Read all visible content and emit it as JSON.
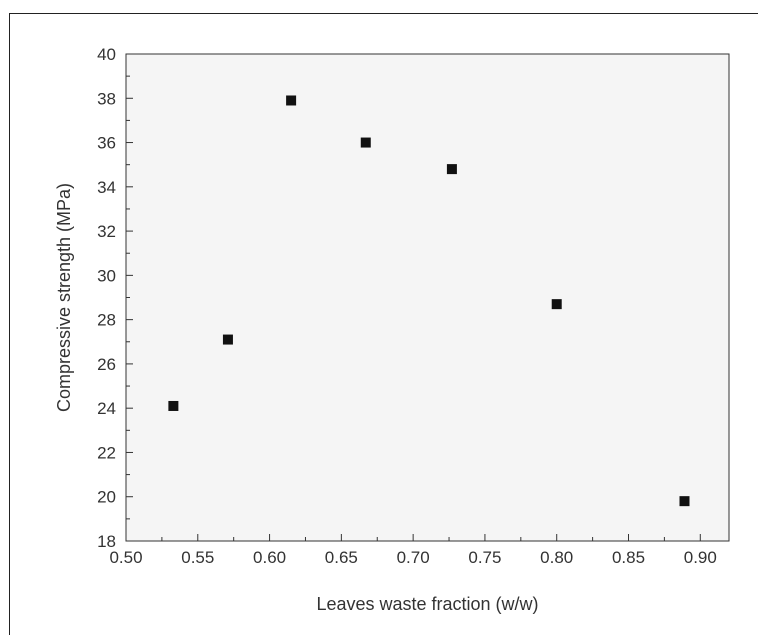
{
  "chart_data": {
    "type": "scatter",
    "xlabel": "Leaves waste fraction (w/w)",
    "ylabel": "Compressive strength (MPa)",
    "xlim": [
      0.5,
      0.92
    ],
    "ylim": [
      18,
      40
    ],
    "xticks": [
      "0.50",
      "0.55",
      "0.60",
      "0.65",
      "0.70",
      "0.75",
      "0.80",
      "0.85",
      "0.90"
    ],
    "yticks": [
      "18",
      "20",
      "22",
      "24",
      "26",
      "28",
      "30",
      "32",
      "34",
      "36",
      "38",
      "40"
    ],
    "grid": false,
    "marker": "square",
    "marker_color": "#111111",
    "plot_background": "#f5f5f5",
    "points": [
      {
        "x": 0.533,
        "y": 24.1
      },
      {
        "x": 0.571,
        "y": 27.1
      },
      {
        "x": 0.615,
        "y": 37.9
      },
      {
        "x": 0.667,
        "y": 36.0
      },
      {
        "x": 0.727,
        "y": 34.8
      },
      {
        "x": 0.8,
        "y": 28.7
      },
      {
        "x": 0.889,
        "y": 19.8
      }
    ]
  }
}
